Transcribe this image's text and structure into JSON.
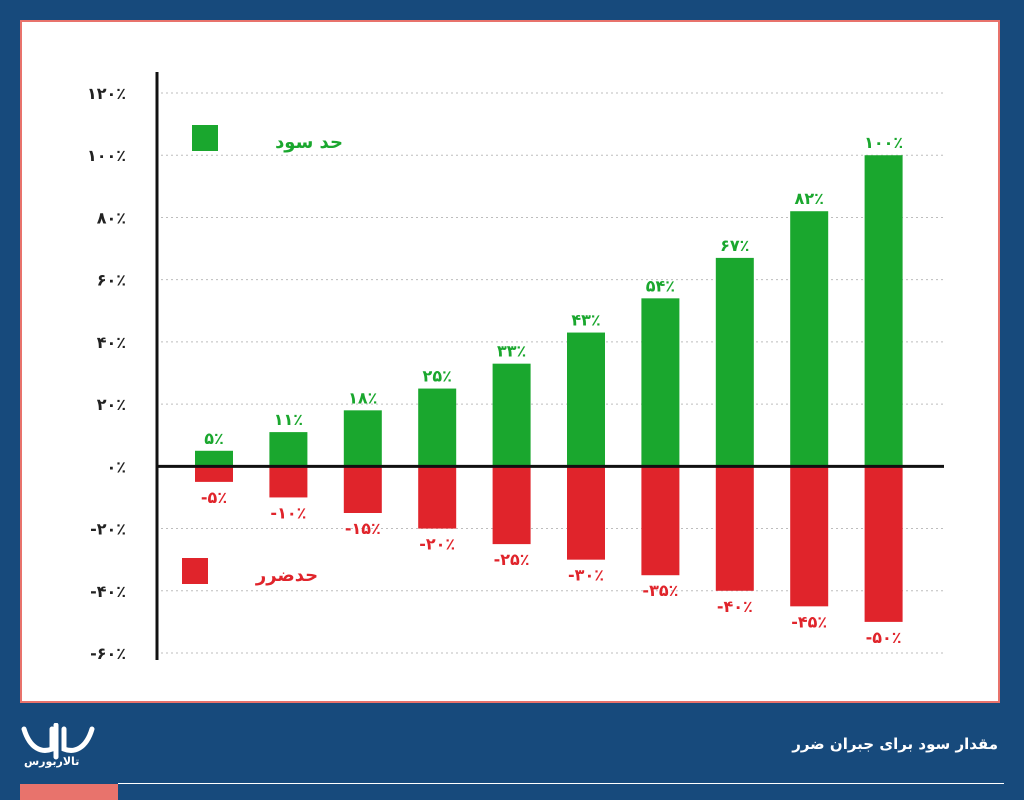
{
  "chart_data": {
    "type": "bar",
    "title": "",
    "xlabel": "",
    "ylabel": "",
    "ylim": [
      -60,
      120
    ],
    "y_ticks": [
      120,
      100,
      80,
      60,
      40,
      20,
      0,
      -20,
      -40,
      -60
    ],
    "y_tick_labels": [
      "۱۲۰٪",
      "۱۰۰٪",
      "۸۰٪",
      "۶۰٪",
      "۴۰٪",
      "۲۰٪",
      "۰٪",
      "-۲۰٪",
      "-۴۰٪",
      "-۶۰٪"
    ],
    "grid": true,
    "legend_placement": "top-left",
    "series": [
      {
        "name": "حد سود",
        "color": "#1aa72e",
        "values": [
          5,
          11,
          18,
          25,
          33,
          43,
          54,
          67,
          82,
          100
        ],
        "labels": [
          "۵٪",
          "۱۱٪",
          "۱۸٪",
          "۲۵٪",
          "۳۳٪",
          "۴۳٪",
          "۵۴٪",
          "۶۷٪",
          "۸۲٪",
          "۱۰۰٪"
        ]
      },
      {
        "name": "حدضرر",
        "color": "#e0242b",
        "values": [
          -5,
          -10,
          -15,
          -20,
          -25,
          -30,
          -35,
          -40,
          -45,
          -50
        ],
        "labels": [
          "-۵٪",
          "-۱۰٪",
          "-۱۵٪",
          "-۲۰٪",
          "-۲۵٪",
          "-۳۰٪",
          "-۳۵٪",
          "-۴۰٪",
          "-۴۵٪",
          "-۵۰٪"
        ]
      }
    ]
  },
  "footer": {
    "caption": "مقدار سود برای جبران ضرر",
    "logo_text": "تالاربورس"
  },
  "colors": {
    "background": "#174a7c",
    "panel_border": "#e8736c",
    "profit": "#1aa72e",
    "loss": "#e0242b"
  }
}
